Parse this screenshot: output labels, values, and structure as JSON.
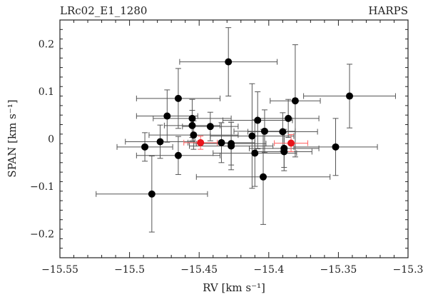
{
  "chart_data": {
    "type": "scatter",
    "title_left": "LRc02_E1_1280",
    "title_right": "HARPS",
    "xlabel": "RV [km s⁻¹]",
    "ylabel": "SPAN [km s⁻¹]",
    "xlim": [
      -15.55,
      -15.3
    ],
    "ylim": [
      -0.25,
      0.25
    ],
    "x_ticks": [
      -15.55,
      -15.5,
      -15.45,
      -15.4,
      -15.35,
      -15.3
    ],
    "x_tick_labels": [
      "−15.55",
      "−15.5",
      "−15.45",
      "−15.4",
      "−15.35",
      "−15.3"
    ],
    "y_ticks": [
      -0.2,
      -0.1,
      0,
      0.1,
      0.2
    ],
    "y_tick_labels": [
      "−0.2",
      "−0.1",
      "0",
      "0.1",
      "0.2"
    ],
    "grid": false,
    "colors": {
      "main": "#000000",
      "highlight": "#e8141b",
      "errorbar": "#555555",
      "highlight_errorbar": "#ff6060"
    },
    "series": [
      {
        "points": [
          {
            "x": -15.429,
            "y": 0.162,
            "xerr": 0.035,
            "yerr": 0.072
          },
          {
            "x": -15.342,
            "y": 0.09,
            "xerr": 0.033,
            "yerr": 0.067
          },
          {
            "x": -15.381,
            "y": 0.08,
            "xerr": 0.018,
            "yerr": 0.118
          },
          {
            "x": -15.465,
            "y": 0.085,
            "xerr": 0.03,
            "yerr": 0.063
          },
          {
            "x": -15.473,
            "y": 0.048,
            "xerr": 0.022,
            "yerr": 0.055
          },
          {
            "x": -15.455,
            "y": 0.043,
            "xerr": 0.028,
            "yerr": 0.04
          },
          {
            "x": -15.386,
            "y": 0.043,
            "xerr": 0.022,
            "yerr": 0.04
          },
          {
            "x": -15.408,
            "y": 0.039,
            "xerr": 0.025,
            "yerr": 0.06
          },
          {
            "x": -15.455,
            "y": 0.028,
            "xerr": 0.02,
            "yerr": 0.032
          },
          {
            "x": -15.442,
            "y": 0.026,
            "xerr": 0.02,
            "yerr": 0.03
          },
          {
            "x": -15.403,
            "y": 0.016,
            "xerr": 0.022,
            "yerr": 0.045
          },
          {
            "x": -15.39,
            "y": 0.015,
            "xerr": 0.025,
            "yerr": 0.04
          },
          {
            "x": -15.454,
            "y": 0.008,
            "xerr": 0.032,
            "yerr": 0.03
          },
          {
            "x": -15.412,
            "y": 0.006,
            "xerr": 0.03,
            "yerr": 0.11
          },
          {
            "x": -15.478,
            "y": -0.006,
            "xerr": 0.025,
            "yerr": 0.035
          },
          {
            "x": -15.434,
            "y": -0.008,
            "xerr": 0.024,
            "yerr": 0.042
          },
          {
            "x": -15.427,
            "y": -0.01,
            "xerr": 0.025,
            "yerr": 0.045
          },
          {
            "x": -15.427,
            "y": -0.015,
            "xerr": 0.03,
            "yerr": 0.05
          },
          {
            "x": -15.389,
            "y": -0.02,
            "xerr": 0.025,
            "yerr": 0.04
          },
          {
            "x": -15.489,
            "y": -0.017,
            "xerr": 0.02,
            "yerr": 0.03
          },
          {
            "x": -15.352,
            "y": -0.017,
            "xerr": 0.03,
            "yerr": 0.06
          },
          {
            "x": -15.389,
            "y": -0.027,
            "xerr": 0.02,
            "yerr": 0.04
          },
          {
            "x": -15.41,
            "y": -0.03,
            "xerr": 0.03,
            "yerr": 0.07
          },
          {
            "x": -15.465,
            "y": -0.035,
            "xerr": 0.03,
            "yerr": 0.04
          },
          {
            "x": -15.404,
            "y": -0.08,
            "xerr": 0.048,
            "yerr": 0.1
          },
          {
            "x": -15.484,
            "y": -0.116,
            "xerr": 0.04,
            "yerr": 0.08
          }
        ]
      },
      {
        "highlight": true,
        "points": [
          {
            "x": -15.449,
            "y": -0.008,
            "xerr": 0.012,
            "yerr": 0.014
          },
          {
            "x": -15.384,
            "y": -0.009,
            "xerr": 0.012,
            "yerr": 0.018
          }
        ]
      }
    ]
  }
}
